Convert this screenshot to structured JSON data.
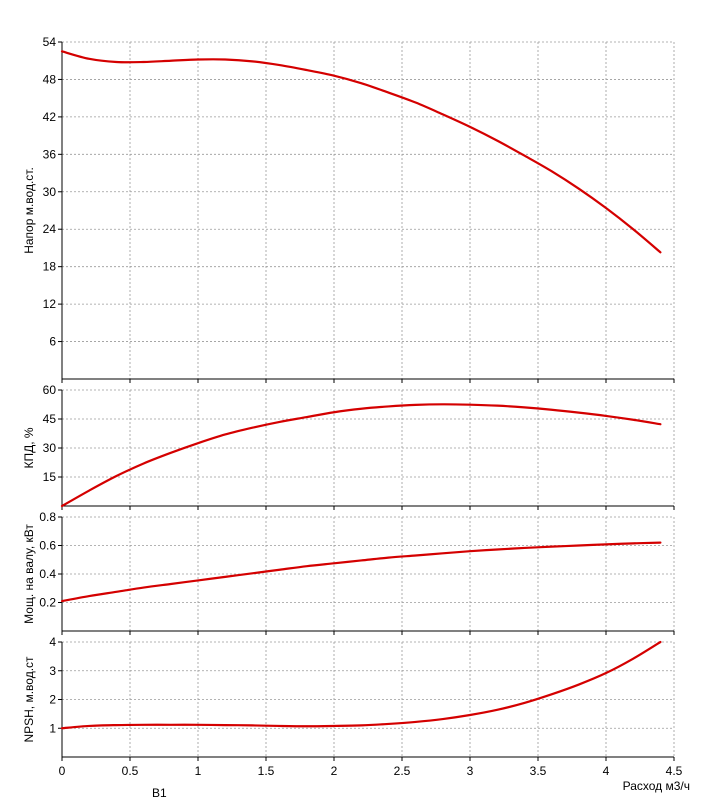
{
  "chart_data": [
    {
      "type": "line",
      "ylabel": "Напор м.вод.ст.",
      "ylim": [
        0,
        54
      ],
      "yticks": [
        "6",
        "12",
        "18",
        "24",
        "30",
        "36",
        "42",
        "48",
        "54"
      ],
      "ytick_values": [
        6,
        12,
        18,
        24,
        30,
        36,
        42,
        48,
        54
      ],
      "grid": true,
      "series": [
        {
          "color": "#d40000",
          "x": [
            0,
            0.2,
            0.4,
            0.6,
            0.8,
            1.0,
            1.2,
            1.4,
            1.6,
            1.8,
            2.0,
            2.2,
            2.4,
            2.6,
            2.8,
            3.0,
            3.2,
            3.4,
            3.6,
            3.8,
            4.0,
            4.2,
            4.4
          ],
          "y": [
            52.5,
            51.3,
            50.8,
            50.8,
            51.0,
            51.2,
            51.2,
            50.9,
            50.3,
            49.5,
            48.6,
            47.4,
            45.9,
            44.3,
            42.4,
            40.4,
            38.2,
            35.8,
            33.3,
            30.5,
            27.4,
            24.0,
            20.3
          ]
        }
      ]
    },
    {
      "type": "line",
      "ylabel": "КПД, %",
      "ylim": [
        0,
        60
      ],
      "yticks": [
        "15",
        "30",
        "45",
        "60"
      ],
      "ytick_values": [
        15,
        30,
        45,
        60
      ],
      "grid": true,
      "series": [
        {
          "color": "#d40000",
          "x": [
            0,
            0.2,
            0.4,
            0.6,
            0.8,
            1.0,
            1.2,
            1.4,
            1.6,
            1.8,
            2.0,
            2.2,
            2.4,
            2.6,
            2.8,
            3.0,
            3.2,
            3.4,
            3.6,
            3.8,
            4.0,
            4.2,
            4.4
          ],
          "y": [
            0,
            8,
            15.5,
            22,
            27.5,
            32.5,
            37,
            40.5,
            43.5,
            46,
            48.5,
            50.3,
            51.5,
            52.3,
            52.6,
            52.4,
            51.9,
            51.0,
            49.8,
            48.3,
            46.6,
            44.6,
            42.3
          ]
        }
      ]
    },
    {
      "type": "line",
      "ylabel": "Мощ. на валу, кВт",
      "ylim": [
        0,
        0.8
      ],
      "yticks": [
        "0.2",
        "0.4",
        "0.6",
        "0.8"
      ],
      "ytick_values": [
        0.2,
        0.4,
        0.6,
        0.8
      ],
      "grid": true,
      "series": [
        {
          "color": "#d40000",
          "x": [
            0,
            0.2,
            0.4,
            0.6,
            0.8,
            1.0,
            1.2,
            1.4,
            1.6,
            1.8,
            2.0,
            2.2,
            2.4,
            2.6,
            2.8,
            3.0,
            3.2,
            3.4,
            3.6,
            3.8,
            4.0,
            4.2,
            4.4
          ],
          "y": [
            0.21,
            0.245,
            0.275,
            0.305,
            0.33,
            0.355,
            0.38,
            0.405,
            0.43,
            0.455,
            0.475,
            0.495,
            0.515,
            0.53,
            0.545,
            0.56,
            0.572,
            0.583,
            0.592,
            0.6,
            0.608,
            0.615,
            0.62
          ]
        }
      ]
    },
    {
      "type": "line",
      "ylabel": "NPSH, м.вод.ст",
      "xlabel": "Расход м3/ч",
      "ylim": [
        0,
        4
      ],
      "yticks": [
        "1",
        "2",
        "3",
        "4"
      ],
      "ytick_values": [
        1,
        2,
        3,
        4
      ],
      "xlim": [
        0,
        4.5
      ],
      "xticks": [
        "0",
        "0.5",
        "1",
        "1.5",
        "2",
        "2.5",
        "3",
        "3.5",
        "4",
        "4.5"
      ],
      "xtick_values": [
        0,
        0.5,
        1,
        1.5,
        2,
        2.5,
        3,
        3.5,
        4,
        4.5
      ],
      "grid": true,
      "series": [
        {
          "color": "#d40000",
          "x": [
            0,
            0.2,
            0.4,
            0.6,
            0.8,
            1.0,
            1.2,
            1.4,
            1.6,
            1.8,
            2.0,
            2.2,
            2.4,
            2.6,
            2.8,
            3.0,
            3.2,
            3.4,
            3.6,
            3.8,
            4.0,
            4.2,
            4.4
          ],
          "y": [
            1.0,
            1.08,
            1.11,
            1.12,
            1.12,
            1.12,
            1.11,
            1.1,
            1.08,
            1.07,
            1.08,
            1.1,
            1.15,
            1.22,
            1.32,
            1.46,
            1.64,
            1.88,
            2.18,
            2.52,
            2.92,
            3.42,
            4.0
          ]
        }
      ]
    }
  ],
  "footer_note": "В1"
}
